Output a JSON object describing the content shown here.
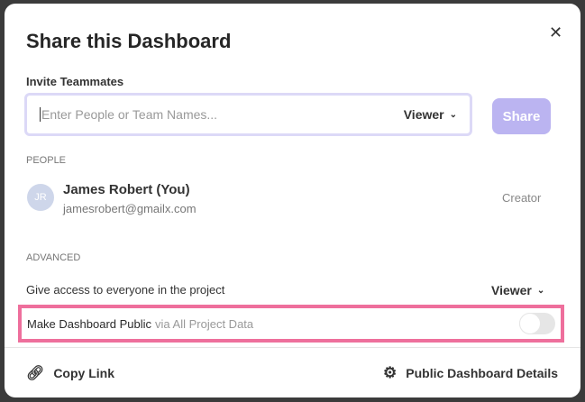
{
  "dialog": {
    "title": "Share this Dashboard",
    "close_icon": "close-icon"
  },
  "invite": {
    "label": "Invite Teammates",
    "placeholder": "Enter People or Team Names...",
    "role": "Viewer",
    "share_label": "Share",
    "share_color": "#bbb4f1"
  },
  "people": {
    "heading": "PEOPLE",
    "items": [
      {
        "initials": "JR",
        "name": "James Robert (You)",
        "email": "jamesrobert@gmailx.com",
        "role": "Creator"
      }
    ]
  },
  "advanced": {
    "heading": "ADVANCED",
    "access_label": "Give access to everyone in the project",
    "access_role": "Viewer",
    "public_label": "Make Dashboard Public",
    "public_sub": "via All Project Data",
    "public_enabled": false,
    "highlight_color": "#ee6f9c"
  },
  "footer": {
    "copy_link": "Copy Link",
    "public_details": "Public Dashboard Details"
  }
}
